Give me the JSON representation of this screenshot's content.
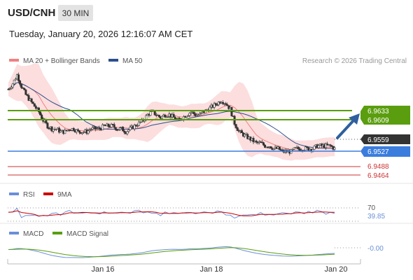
{
  "header": {
    "symbol": "USD/CNH",
    "timeframe": "30 MIN",
    "datetime": "Tuesday, January 20, 2026 12:16:07 AM CET"
  },
  "price_panel": {
    "legend": [
      {
        "label": "MA 20 + Bollinger Bands",
        "color": "#f08080"
      },
      {
        "label": "MA 50",
        "color": "#2c4f8c"
      }
    ],
    "credit": "Research © 2026 Trading Central",
    "levels": [
      {
        "value": 6.9633,
        "label": "6.9633",
        "kind": "resistance",
        "color": "#5a9e0f"
      },
      {
        "value": 6.9609,
        "label": "6.9609",
        "kind": "resistance",
        "color": "#5a9e0f"
      },
      {
        "value": 6.9559,
        "label": "6.9559",
        "kind": "last",
        "color": "#333333"
      },
      {
        "value": 6.9527,
        "label": "6.9527",
        "kind": "pivot",
        "color": "#3b7ddd"
      },
      {
        "value": 6.9488,
        "label": "6.9488",
        "kind": "support",
        "color": "#cc3333"
      },
      {
        "value": 6.9464,
        "label": "6.9464",
        "kind": "support",
        "color": "#cc3333"
      }
    ],
    "arrow_direction": "up",
    "arrow_color": "#2f5f9e"
  },
  "rsi_panel": {
    "legend": [
      {
        "label": "RSI",
        "color": "#6a8fd8"
      },
      {
        "label": "9MA",
        "color": "#cc0000"
      }
    ],
    "level": "70",
    "value": "39.85"
  },
  "macd_panel": {
    "legend": [
      {
        "label": "MACD",
        "color": "#6a8fd8"
      },
      {
        "label": "MACD Signal",
        "color": "#5a9e0f"
      }
    ],
    "value": "-0.00"
  },
  "chart_data": {
    "type": "candlestick",
    "x_ticks": [
      "Jan 16",
      "Jan 18",
      "Jan 20"
    ],
    "price_range": [
      6.944,
      6.985
    ],
    "close_series": [
      6.977,
      6.979,
      6.982,
      6.978,
      6.975,
      6.973,
      6.971,
      6.969,
      6.966,
      6.964,
      6.963,
      6.963,
      6.962,
      6.962,
      6.963,
      6.963,
      6.962,
      6.962,
      6.962,
      6.963,
      6.963,
      6.963,
      6.964,
      6.964,
      6.964,
      6.963,
      6.963,
      6.962,
      6.963,
      6.964,
      6.965,
      6.966,
      6.968,
      6.969,
      6.968,
      6.967,
      6.968,
      6.968,
      6.967,
      6.966,
      6.967,
      6.968,
      6.969,
      6.968,
      6.968,
      6.969,
      6.97,
      6.971,
      6.972,
      6.973,
      6.972,
      6.97,
      6.965,
      6.962,
      6.961,
      6.96,
      6.959,
      6.958,
      6.958,
      6.957,
      6.957,
      6.956,
      6.956,
      6.955,
      6.955,
      6.955,
      6.956,
      6.956,
      6.956,
      6.956,
      6.956,
      6.957,
      6.957,
      6.957,
      6.957,
      6.956
    ]
  }
}
